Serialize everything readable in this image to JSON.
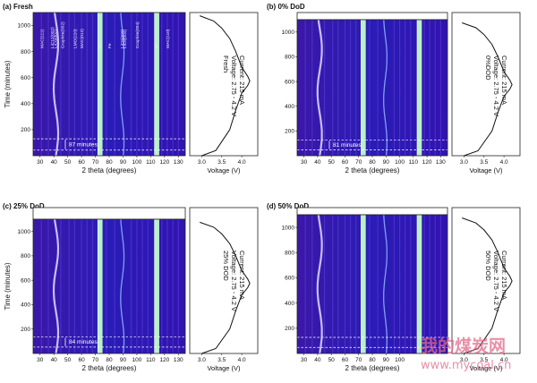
{
  "chart_data": [
    {
      "type": "heatmap",
      "panel": "(a) Fresh",
      "title": "(a) Fresh",
      "xlabel": "2 theta (degrees)",
      "ylabel": "Time (minutes)",
      "xlim": [
        25,
        135
      ],
      "ylim": [
        0,
        1100
      ],
      "xticks": [
        30,
        40,
        50,
        60,
        70,
        80,
        90,
        100,
        110,
        120,
        130
      ],
      "yticks": [
        200,
        400,
        600,
        800,
        1000
      ],
      "reflections": [
        {
          "label": "MAC(111)",
          "x": 31
        },
        {
          "label": "LiC12(002)",
          "x": 38.5
        },
        {
          "label": "LiC6(002)",
          "x": 41
        },
        {
          "label": "Graphite(002)",
          "x": 46
        },
        {
          "label": "LMO(220)",
          "x": 55
        },
        {
          "label": "MAC(012)",
          "x": 60
        },
        {
          "label": "Cu",
          "x": 73
        },
        {
          "label": "Fe",
          "x": 80
        },
        {
          "label": "LiC6(002)",
          "x": 89
        },
        {
          "label": "LiC6(004)",
          "x": 91
        },
        {
          "label": "Graphite(004)",
          "x": 100
        },
        {
          "label": "W",
          "x": 114
        },
        {
          "label": "MAC(110)",
          "x": 122
        }
      ],
      "bright_bands_x": [
        73.5,
        114.5
      ],
      "dashed_lines_y": [
        130,
        43
      ],
      "interval_label": "87 minutes",
      "voltage_panel": {
        "xlabel": "Voltage (V)",
        "xlim": [
          2.7,
          4.4
        ],
        "xticks": [
          3.0,
          3.5,
          4.0
        ],
        "text": [
          "Fresh",
          "Voltage: 2.75 - 4.2 V",
          "Current: 215 mA"
        ]
      }
    },
    {
      "type": "heatmap",
      "panel": "(b) 0% DoD",
      "title": "(b) 0% DoD",
      "xlabel": "2 theta (degrees)",
      "ylabel": "",
      "xlim": [
        25,
        135
      ],
      "ylim": [
        0,
        1100
      ],
      "xticks": [
        30,
        40,
        50,
        60,
        70,
        80,
        90,
        100,
        110,
        120,
        130
      ],
      "yticks": [
        200,
        400,
        600,
        800,
        1000
      ],
      "bright_bands_x": [
        73.5,
        114.5
      ],
      "dashed_lines_y": [
        128,
        47
      ],
      "interval_label": "81 minutes",
      "voltage_panel": {
        "xlabel": "Voltage (V)",
        "xlim": [
          2.7,
          4.4
        ],
        "xticks": [
          3.0,
          3.5,
          4.0
        ],
        "text": [
          "0%DOD",
          "Voltage: 2.75 - 4.2 V",
          "Current: 215 mA"
        ]
      }
    },
    {
      "type": "heatmap",
      "panel": "(c) 25% DoD",
      "title": "(c) 25% DoD",
      "xlabel": "2 theta (degrees)",
      "ylabel": "Time (minutes)",
      "xlim": [
        25,
        135
      ],
      "ylim": [
        0,
        1100
      ],
      "xticks": [
        30,
        40,
        50,
        60,
        70,
        80,
        90,
        100,
        110,
        120,
        130
      ],
      "yticks": [
        200,
        400,
        600,
        800,
        1000
      ],
      "bright_bands_x": [
        73.5,
        114.5
      ],
      "dashed_lines_y": [
        136,
        52
      ],
      "interval_label": "84 minutes",
      "voltage_panel": {
        "xlabel": "Voltage (V)",
        "xlim": [
          2.7,
          4.4
        ],
        "xticks": [
          3.0,
          3.5,
          4.0
        ],
        "text": [
          "25% DOD",
          "Voltage: 2.75 - 4.2 V",
          "Current: 215 mA"
        ]
      }
    },
    {
      "type": "heatmap",
      "panel": "(d) 50% DoD",
      "title": "(d) 50% DoD",
      "xlabel": "2 theta (degrees)",
      "ylabel": "",
      "xlim": [
        25,
        135
      ],
      "ylim": [
        0,
        1100
      ],
      "xticks": [
        30,
        40,
        50,
        60,
        70,
        80,
        90,
        100
      ],
      "yticks": [
        200,
        400,
        600,
        800,
        1000
      ],
      "bright_bands_x": [
        73.5,
        114.5
      ],
      "dashed_lines_y": [
        128,
        48
      ],
      "interval_label": "",
      "voltage_panel": {
        "xlabel": "Voltage (V)",
        "xlim": [
          2.7,
          4.4
        ],
        "xticks": [
          3.0,
          3.5,
          4.0
        ],
        "text": [
          "50% DOD",
          "Voltage: 2.75 - 4.2 V",
          "Current: 215 mA"
        ]
      }
    }
  ],
  "watermark": {
    "text": "我的煤炭网",
    "url": "www.mycoal.cn"
  }
}
